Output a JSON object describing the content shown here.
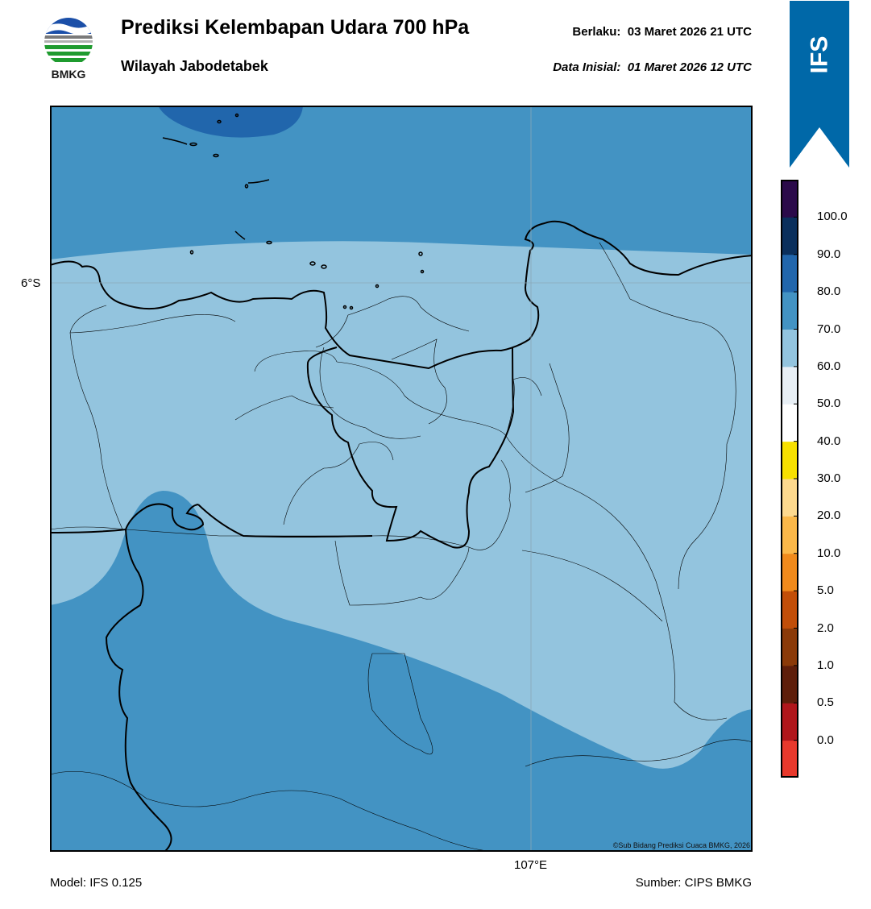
{
  "header": {
    "title": "Prediksi Kelembapan Udara 700 hPa",
    "subtitle": "Wilayah Jabodetabek",
    "valid_time": "Berlaku:  03 Maret 2026 21 UTC",
    "init_time": "Data Inisial:  01 Maret 2026 12 UTC"
  },
  "logo": {
    "text": "BMKG"
  },
  "badge": {
    "text": "IFS",
    "color": "#0068a8"
  },
  "map": {
    "lat_label": "6°S",
    "lon_label": "107°E",
    "copyright": "©Sub Bidang Prediksi Cuaca BMKG, 2026",
    "field_colors": {
      "band_60_70": "#93c4de",
      "band_70_80": "#4393c3",
      "band_80_90": "#2166ac"
    }
  },
  "colorbar": {
    "labels": [
      "100.0",
      "90.0",
      "80.0",
      "70.0",
      "60.0",
      "50.0",
      "40.0",
      "30.0",
      "20.0",
      "10.0",
      "5.0",
      "2.0",
      "1.0",
      "0.5",
      "0.0"
    ],
    "colors": [
      "#e8392c",
      "#b0161b",
      "#5e1e0a",
      "#8b3a08",
      "#c24e08",
      "#f08a1c",
      "#fbb849",
      "#fdd98e",
      "#f7e000",
      "#ffffff",
      "#e8eff5",
      "#93c4de",
      "#4393c3",
      "#2166ac",
      "#0a2f5c",
      "#2b0a4a"
    ]
  },
  "footer": {
    "model": "Model: IFS 0.125",
    "source": "Sumber: CIPS BMKG"
  }
}
